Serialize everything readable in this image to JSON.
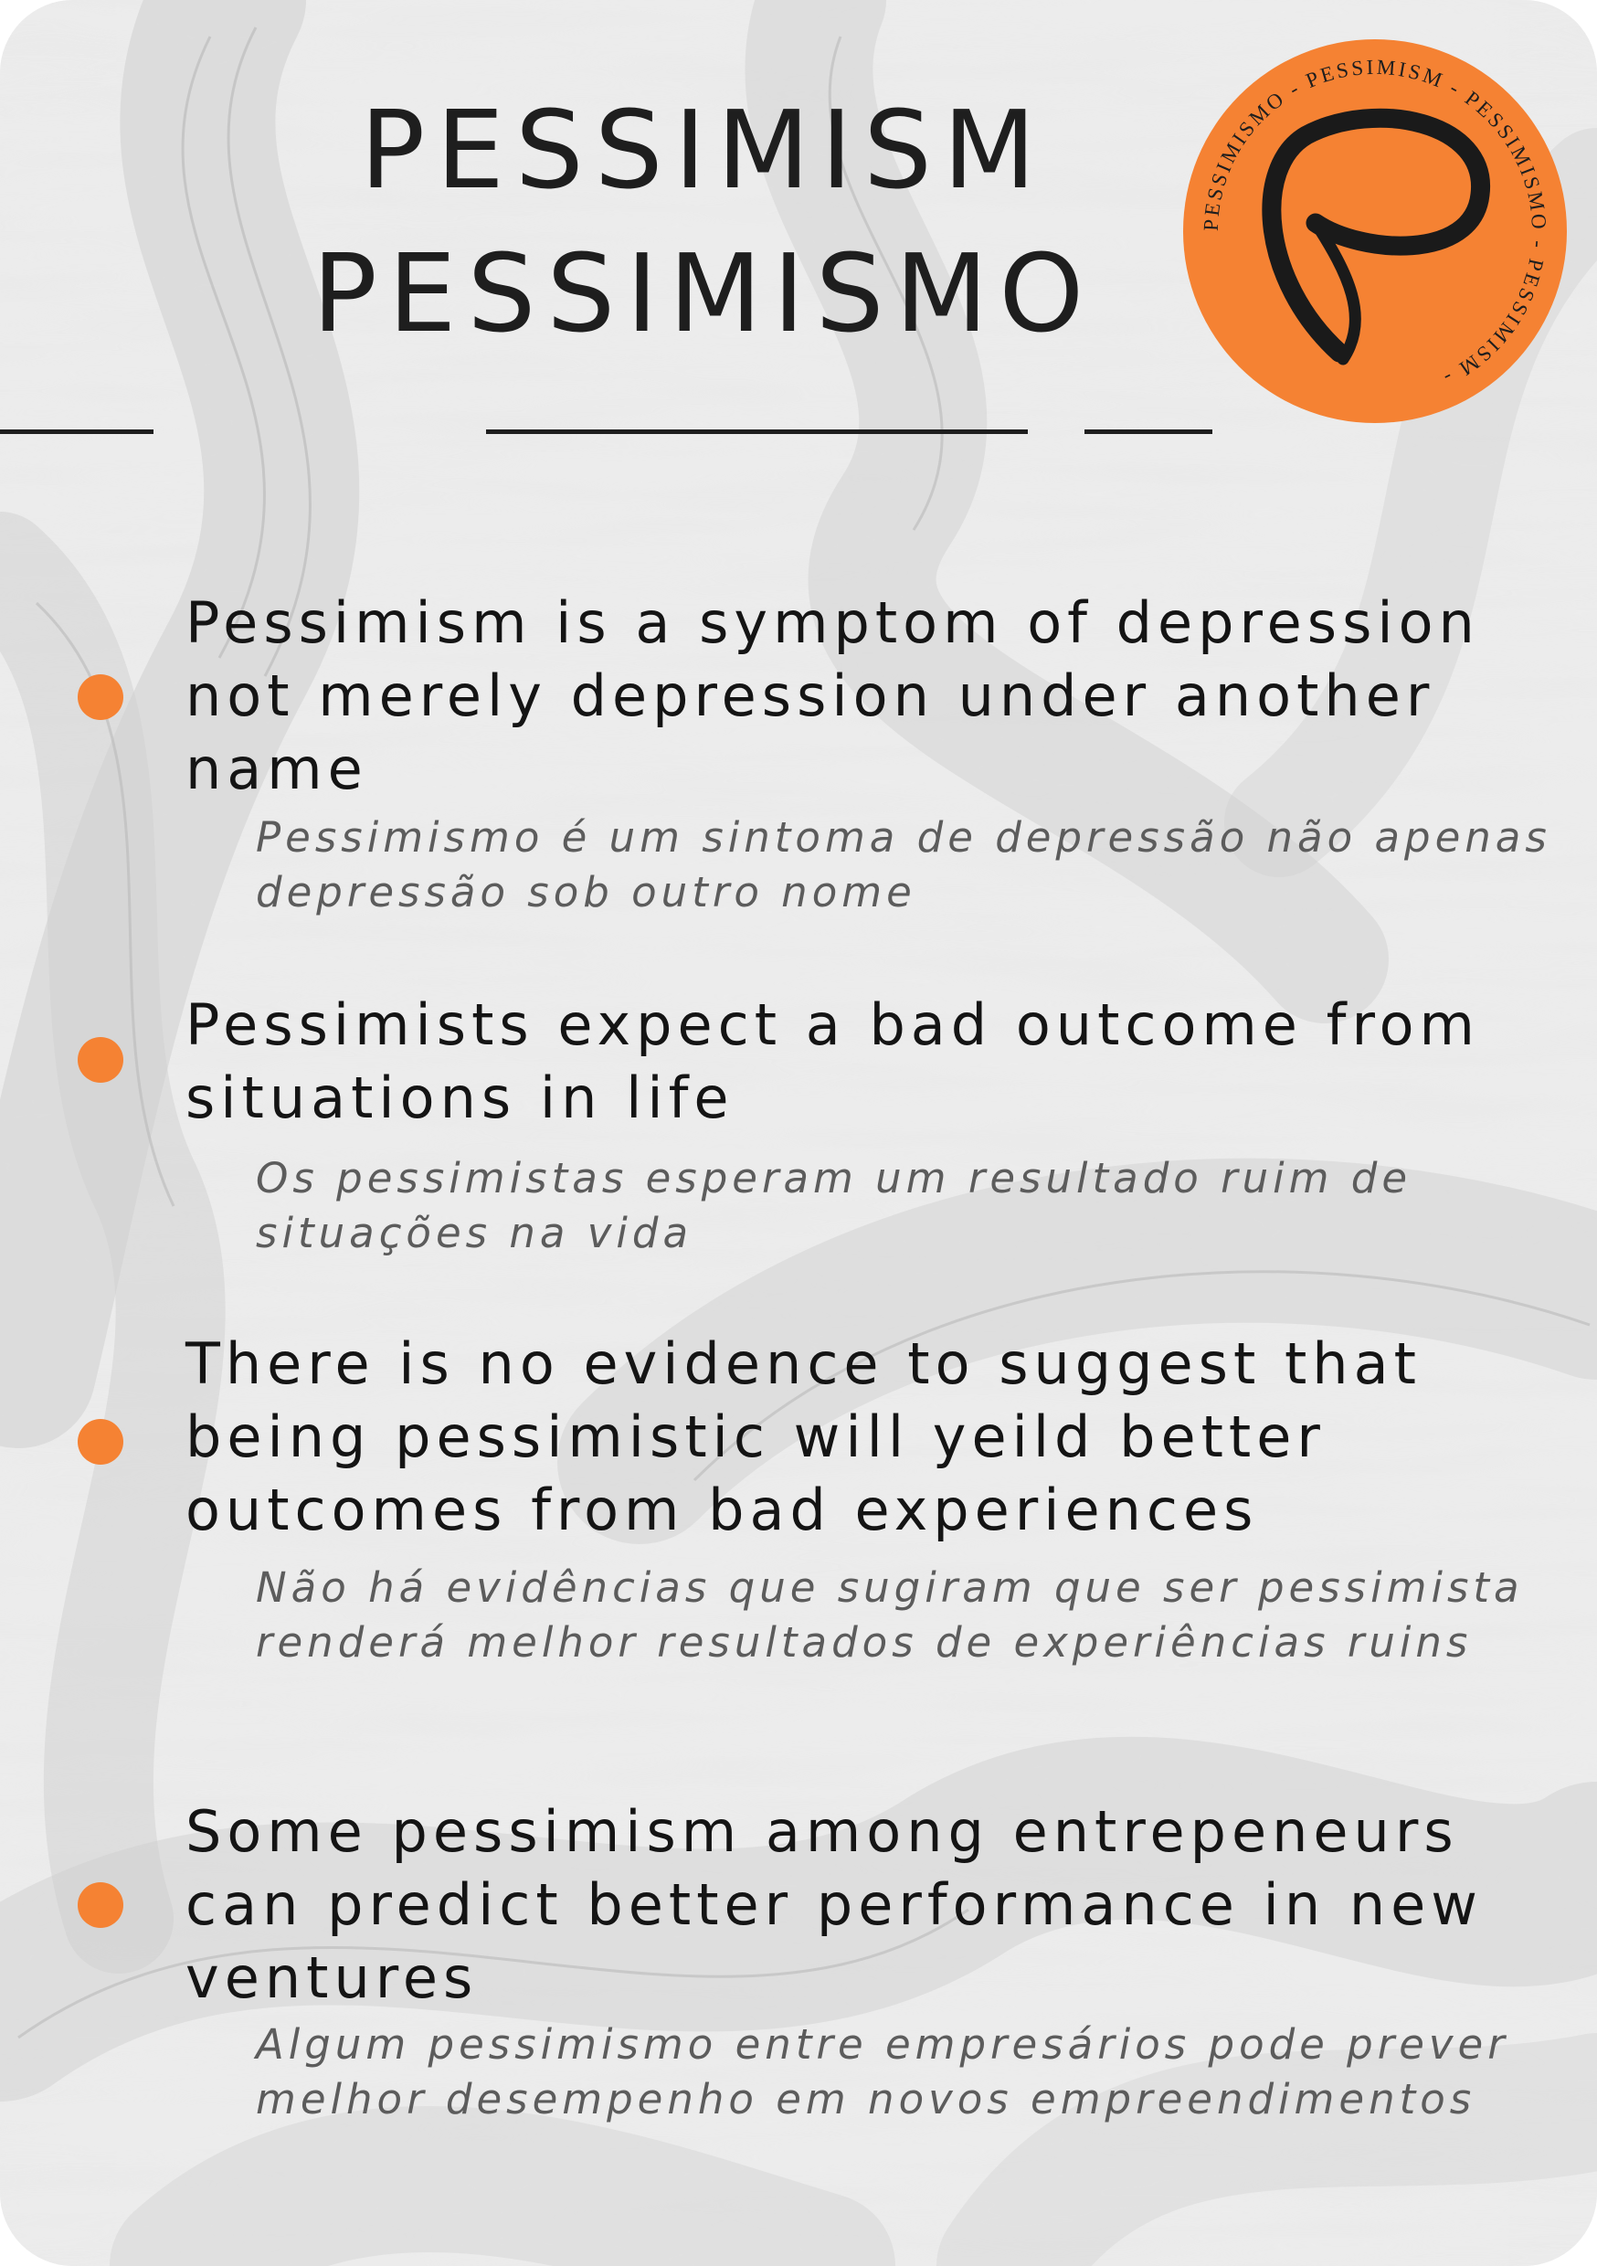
{
  "page": {
    "title_en": "PESSIMISM",
    "title_pt": "PESSIMISMO",
    "accent_color": "#f58233",
    "text_color": "#1e1e1e",
    "subtext_color": "#5c5c5c"
  },
  "badge": {
    "ring_text": "PESSIMISMO - PESSIMISM - PESSIMISMO - PESSIMISM - ",
    "icon": "script-letter-p-icon"
  },
  "items": [
    {
      "en": "Pessimism is a symptom of depression not merely depression under another name",
      "pt": "Pessimismo é um sintoma de depressão não apenas depressão sob outro nome"
    },
    {
      "en": "Pessimists expect a bad outcome from situations in life",
      "pt": "Os pessimistas esperam um resultado ruim de situações na vida"
    },
    {
      "en": "There is no evidence to suggest that being pessimistic will yeild better outcomes from bad experiences",
      "pt": "Não há evidências que sugiram que ser pessimista renderá melhor resultados de experiências ruins"
    },
    {
      "en": "Some pessimism among entrepeneurs can predict better performance in new ventures",
      "pt": "Algum pessimismo entre empresários pode prever melhor desempenho em novos empreendimentos"
    }
  ]
}
